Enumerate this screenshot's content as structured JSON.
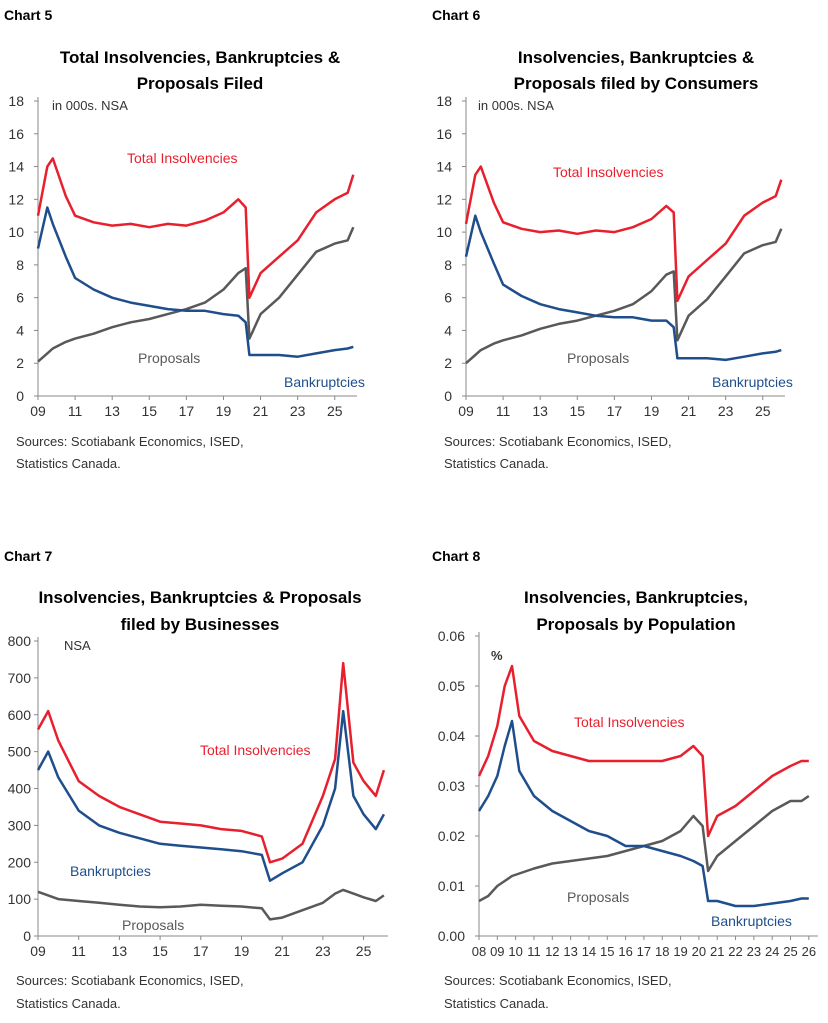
{
  "colors": {
    "total": "#e8202e",
    "bankruptcies": "#1f4e8c",
    "proposals": "#595959",
    "axis": "#888888",
    "text": "#333333"
  },
  "charts": [
    {
      "chart_label": "Chart 5",
      "title_lines": [
        "Total Insolvencies, Bankruptcies &",
        "Proposals Filed"
      ],
      "unit_note": "in 000s. NSA",
      "source_lines": [
        "Sources: Scotiabank Economics, ISED,",
        "Statistics Canada."
      ],
      "series_labels": {
        "total": "Total Insolvencies",
        "proposals": "Proposals",
        "bankruptcies": "Bankruptcies"
      }
    },
    {
      "chart_label": "Chart 6",
      "title_lines": [
        "Insolvencies, Bankruptcies &",
        "Proposals filed by Consumers"
      ],
      "unit_note": "in 000s. NSA",
      "source_lines": [
        "Sources: Scotiabank Economics, ISED,",
        "Statistics Canada."
      ],
      "series_labels": {
        "total": "Total Insolvencies",
        "proposals": "Proposals",
        "bankruptcies": "Bankruptcies"
      }
    },
    {
      "chart_label": "Chart 7",
      "title_lines": [
        "Insolvencies, Bankruptcies & Proposals",
        "filed by Businesses"
      ],
      "unit_note": "NSA",
      "source_lines": [
        "Sources: Scotiabank Economics, ISED,",
        "Statistics Canada."
      ],
      "series_labels": {
        "total": "Total Insolvencies",
        "proposals": "Proposals",
        "bankruptcies": "Bankruptcies"
      }
    },
    {
      "chart_label": "Chart 8",
      "title_lines": [
        "Insolvencies, Bankruptcies,",
        "Proposals by Population"
      ],
      "unit_note": "%",
      "source_lines": [
        "Sources: Scotiabank Economics, ISED,",
        "Statistics Canada."
      ],
      "series_labels": {
        "total": "Total Insolvencies",
        "proposals": "Proposals",
        "bankruptcies": "Bankruptcies"
      }
    }
  ],
  "chart_data": [
    {
      "type": "line",
      "title": "Total Insolvencies, Bankruptcies & Proposals Filed",
      "ylabel": "in 000s. NSA",
      "ylim": [
        0,
        18
      ],
      "yticks": [
        "0",
        "2",
        "4",
        "6",
        "8",
        "10",
        "12",
        "14",
        "16",
        "18"
      ],
      "xlim": [
        2009,
        2026.2
      ],
      "xticks": [
        "09",
        "11",
        "13",
        "15",
        "17",
        "19",
        "21",
        "23",
        "25"
      ],
      "x": [
        2009.0,
        2009.5,
        2009.8,
        2010.5,
        2011.0,
        2012.0,
        2013.0,
        2014.0,
        2015.0,
        2016.0,
        2017.0,
        2018.0,
        2019.0,
        2019.8,
        2020.2,
        2020.4,
        2021.0,
        2022.0,
        2023.0,
        2024.0,
        2025.0,
        2025.7,
        2026.0
      ],
      "series": [
        {
          "name": "Total Insolvencies",
          "values": [
            11.0,
            14.0,
            14.5,
            12.2,
            11.0,
            10.6,
            10.4,
            10.5,
            10.3,
            10.5,
            10.4,
            10.7,
            11.2,
            12.0,
            11.5,
            6.0,
            7.5,
            8.5,
            9.5,
            11.2,
            12.0,
            12.4,
            13.5
          ]
        },
        {
          "name": "Bankruptcies",
          "values": [
            9.0,
            11.5,
            10.5,
            8.5,
            7.2,
            6.5,
            6.0,
            5.7,
            5.5,
            5.3,
            5.2,
            5.2,
            5.0,
            4.9,
            4.5,
            2.5,
            2.5,
            2.5,
            2.4,
            2.6,
            2.8,
            2.9,
            3.0
          ]
        },
        {
          "name": "Proposals",
          "values": [
            2.1,
            2.6,
            2.9,
            3.3,
            3.5,
            3.8,
            4.2,
            4.5,
            4.7,
            5.0,
            5.3,
            5.7,
            6.5,
            7.5,
            7.8,
            3.5,
            5.0,
            6.0,
            7.4,
            8.8,
            9.3,
            9.5,
            10.3
          ]
        }
      ]
    },
    {
      "type": "line",
      "title": "Insolvencies, Bankruptcies & Proposals filed by Consumers",
      "ylabel": "in 000s. NSA",
      "ylim": [
        0,
        18
      ],
      "yticks": [
        "0",
        "2",
        "4",
        "6",
        "8",
        "10",
        "12",
        "14",
        "16",
        "18"
      ],
      "xlim": [
        2009,
        2026.2
      ],
      "xticks": [
        "09",
        "11",
        "13",
        "15",
        "17",
        "19",
        "21",
        "23",
        "25"
      ],
      "x": [
        2009.0,
        2009.5,
        2009.8,
        2010.5,
        2011.0,
        2012.0,
        2013.0,
        2014.0,
        2015.0,
        2016.0,
        2017.0,
        2018.0,
        2019.0,
        2019.8,
        2020.2,
        2020.4,
        2021.0,
        2022.0,
        2023.0,
        2024.0,
        2025.0,
        2025.7,
        2026.0
      ],
      "series": [
        {
          "name": "Total Insolvencies",
          "values": [
            10.5,
            13.5,
            14.0,
            11.8,
            10.6,
            10.2,
            10.0,
            10.1,
            9.9,
            10.1,
            10.0,
            10.3,
            10.8,
            11.6,
            11.2,
            5.8,
            7.3,
            8.3,
            9.3,
            11.0,
            11.8,
            12.2,
            13.2
          ]
        },
        {
          "name": "Bankruptcies",
          "values": [
            8.5,
            11.0,
            10.0,
            8.1,
            6.8,
            6.1,
            5.6,
            5.3,
            5.1,
            4.9,
            4.8,
            4.8,
            4.6,
            4.6,
            4.2,
            2.3,
            2.3,
            2.3,
            2.2,
            2.4,
            2.6,
            2.7,
            2.8
          ]
        },
        {
          "name": "Proposals",
          "values": [
            2.0,
            2.5,
            2.8,
            3.2,
            3.4,
            3.7,
            4.1,
            4.4,
            4.6,
            4.9,
            5.2,
            5.6,
            6.4,
            7.4,
            7.6,
            3.4,
            4.9,
            5.9,
            7.3,
            8.7,
            9.2,
            9.4,
            10.2
          ]
        }
      ]
    },
    {
      "type": "line",
      "title": "Insolvencies, Bankruptcies & Proposals filed by Businesses",
      "ylabel": "NSA",
      "ylim": [
        0,
        800
      ],
      "yticks": [
        "0",
        "100",
        "200",
        "300",
        "400",
        "500",
        "600",
        "700",
        "800"
      ],
      "xlim": [
        2009,
        2026.2
      ],
      "xticks": [
        "09",
        "11",
        "13",
        "15",
        "17",
        "19",
        "21",
        "23",
        "25"
      ],
      "x": [
        2009.0,
        2009.5,
        2010.0,
        2011.0,
        2012.0,
        2013.0,
        2014.0,
        2015.0,
        2016.0,
        2017.0,
        2018.0,
        2019.0,
        2020.0,
        2020.4,
        2021.0,
        2022.0,
        2023.0,
        2023.6,
        2024.0,
        2024.5,
        2025.0,
        2025.6,
        2026.0
      ],
      "series": [
        {
          "name": "Total Insolvencies",
          "values": [
            560,
            610,
            530,
            420,
            380,
            350,
            330,
            310,
            305,
            300,
            290,
            285,
            270,
            200,
            210,
            250,
            380,
            480,
            740,
            470,
            420,
            380,
            450
          ]
        },
        {
          "name": "Bankruptcies",
          "values": [
            450,
            500,
            430,
            340,
            300,
            280,
            265,
            250,
            245,
            240,
            235,
            230,
            220,
            150,
            170,
            200,
            300,
            400,
            610,
            380,
            330,
            290,
            330
          ]
        },
        {
          "name": "Proposals",
          "values": [
            120,
            110,
            100,
            95,
            90,
            85,
            80,
            78,
            80,
            85,
            82,
            80,
            75,
            45,
            50,
            70,
            90,
            115,
            125,
            115,
            105,
            95,
            110
          ]
        }
      ]
    },
    {
      "type": "line",
      "title": "Insolvencies, Bankruptcies, Proposals by Population",
      "ylabel": "%",
      "ylim": [
        0,
        0.06
      ],
      "yticks": [
        "0.00",
        "0.01",
        "0.02",
        "0.03",
        "0.04",
        "0.05",
        "0.06"
      ],
      "xlim": [
        2008,
        2026.5
      ],
      "xticks": [
        "08",
        "09",
        "10",
        "11",
        "12",
        "13",
        "14",
        "15",
        "16",
        "17",
        "18",
        "19",
        "20",
        "21",
        "22",
        "23",
        "24",
        "25",
        "26"
      ],
      "x": [
        2008.0,
        2008.5,
        2009.0,
        2009.4,
        2009.8,
        2010.2,
        2011.0,
        2012.0,
        2013.0,
        2014.0,
        2015.0,
        2016.0,
        2017.0,
        2018.0,
        2019.0,
        2019.7,
        2020.2,
        2020.5,
        2021.0,
        2022.0,
        2023.0,
        2024.0,
        2025.0,
        2025.6,
        2026.0
      ],
      "series": [
        {
          "name": "Total Insolvencies",
          "values": [
            0.032,
            0.036,
            0.042,
            0.05,
            0.054,
            0.044,
            0.039,
            0.037,
            0.036,
            0.035,
            0.035,
            0.035,
            0.035,
            0.035,
            0.036,
            0.038,
            0.036,
            0.02,
            0.024,
            0.026,
            0.029,
            0.032,
            0.034,
            0.035,
            0.035
          ]
        },
        {
          "name": "Bankruptcies",
          "values": [
            0.025,
            0.028,
            0.032,
            0.038,
            0.043,
            0.033,
            0.028,
            0.025,
            0.023,
            0.021,
            0.02,
            0.018,
            0.018,
            0.017,
            0.016,
            0.015,
            0.014,
            0.007,
            0.007,
            0.006,
            0.006,
            0.0065,
            0.007,
            0.0075,
            0.0075
          ]
        },
        {
          "name": "Proposals",
          "values": [
            0.007,
            0.008,
            0.01,
            0.011,
            0.012,
            0.0125,
            0.0135,
            0.0145,
            0.015,
            0.0155,
            0.016,
            0.017,
            0.018,
            0.019,
            0.021,
            0.024,
            0.022,
            0.013,
            0.016,
            0.019,
            0.022,
            0.025,
            0.027,
            0.027,
            0.028
          ]
        }
      ]
    }
  ]
}
